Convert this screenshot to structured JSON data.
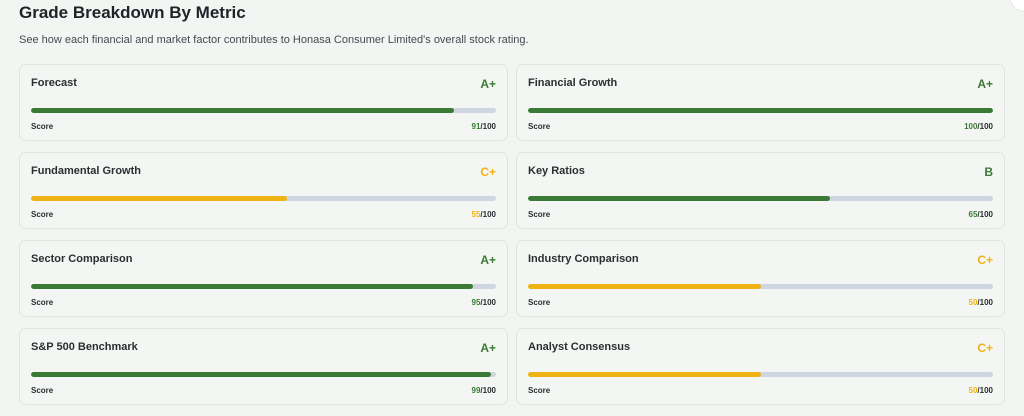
{
  "header": {
    "title": "Grade Breakdown By Metric",
    "subtitle": "See how each financial and market factor contributes to Honasa Consumer Limited's overall stock rating."
  },
  "colors": {
    "green": "#3b7a35",
    "yellow": "#f0b315",
    "track": "#cfd6df"
  },
  "metrics": [
    {
      "name": "Forecast",
      "grade": "A+",
      "tone": "green",
      "score": "91",
      "max": "/100",
      "score_label": "Score",
      "fraction": 0.91
    },
    {
      "name": "Financial Growth",
      "grade": "A+",
      "tone": "green",
      "score": "100",
      "max": "/100",
      "score_label": "Score",
      "fraction": 1.0
    },
    {
      "name": "Fundamental Growth",
      "grade": "C+",
      "tone": "yellow",
      "score": "55",
      "max": "/100",
      "score_label": "Score",
      "fraction": 0.55
    },
    {
      "name": "Key Ratios",
      "grade": "B",
      "tone": "green",
      "score": "65",
      "max": "/100",
      "score_label": "Score",
      "fraction": 0.65
    },
    {
      "name": "Sector Comparison",
      "grade": "A+",
      "tone": "green",
      "score": "95",
      "max": "/100",
      "score_label": "Score",
      "fraction": 0.95
    },
    {
      "name": "Industry Comparison",
      "grade": "C+",
      "tone": "yellow",
      "score": "50",
      "max": "/100",
      "score_label": "Score",
      "fraction": 0.5
    },
    {
      "name": "S&P 500 Benchmark",
      "grade": "A+",
      "tone": "green",
      "score": "99",
      "max": "/100",
      "score_label": "Score",
      "fraction": 0.99
    },
    {
      "name": "Analyst Consensus",
      "grade": "C+",
      "tone": "yellow",
      "score": "50",
      "max": "/100",
      "score_label": "Score",
      "fraction": 0.5
    }
  ]
}
